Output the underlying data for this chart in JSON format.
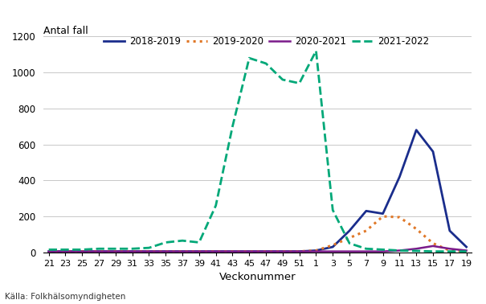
{
  "title": "Antal fall",
  "xlabel": "Veckonummer",
  "source": "Källa: Folkhälsomyndigheten",
  "ylim": [
    0,
    1200
  ],
  "yticks": [
    0,
    200,
    400,
    600,
    800,
    1000,
    1200
  ],
  "x_labels": [
    "21",
    "23",
    "25",
    "27",
    "29",
    "31",
    "33",
    "35",
    "37",
    "39",
    "41",
    "43",
    "45",
    "47",
    "49",
    "51",
    "1",
    "3",
    "5",
    "7",
    "9",
    "11",
    "13",
    "15",
    "17",
    "19"
  ],
  "colors": {
    "2018-2019": "#1a2d8c",
    "2019-2020": "#e07828",
    "2020-2021": "#7b1a8a",
    "2021-2022": "#00a878"
  },
  "series_2018_2019": [
    5,
    5,
    5,
    5,
    5,
    5,
    5,
    5,
    5,
    5,
    5,
    5,
    5,
    5,
    5,
    5,
    10,
    30,
    120,
    230,
    215,
    420,
    680,
    560,
    120,
    30
  ],
  "series_2019_2020": [
    5,
    5,
    5,
    5,
    5,
    5,
    5,
    5,
    5,
    5,
    5,
    5,
    5,
    5,
    5,
    5,
    10,
    40,
    80,
    120,
    200,
    195,
    130,
    50,
    10,
    5
  ],
  "series_2020_2021": [
    5,
    5,
    5,
    5,
    5,
    5,
    5,
    5,
    5,
    5,
    5,
    5,
    5,
    5,
    5,
    5,
    5,
    5,
    5,
    5,
    5,
    10,
    20,
    35,
    20,
    10
  ],
  "series_2021_2022": [
    15,
    15,
    15,
    20,
    20,
    20,
    25,
    55,
    65,
    55,
    260,
    700,
    1080,
    1050,
    960,
    940,
    1120,
    235,
    50,
    20,
    15,
    10,
    8,
    5,
    5,
    5
  ]
}
